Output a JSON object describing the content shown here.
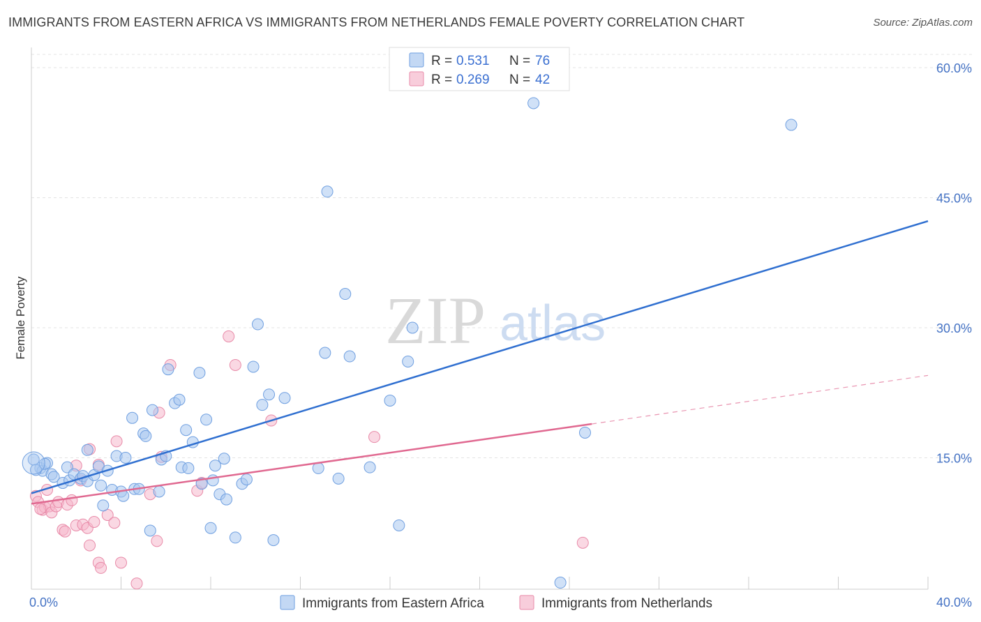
{
  "title": "IMMIGRANTS FROM EASTERN AFRICA VS IMMIGRANTS FROM NETHERLANDS FEMALE POVERTY CORRELATION CHART",
  "source": "Source: ZipAtlas.com",
  "watermark": {
    "zip": "ZIP",
    "atlas": "atlas"
  },
  "colors": {
    "blue_fill": "#a9c8f0",
    "blue_stroke": "#6f9fe0",
    "blue_line": "#2f6fd0",
    "pink_fill": "#f5b8cc",
    "pink_stroke": "#e88aa8",
    "pink_line": "#e06890",
    "grid": "#e3e3e3",
    "tick_text": "#4472c4"
  },
  "legend": {
    "rows": [
      {
        "r_label": "R =",
        "r_value": "0.531",
        "n_label": "N =",
        "n_value": "76"
      },
      {
        "r_label": "R =",
        "r_value": "0.269",
        "n_label": "N =",
        "n_value": "42"
      }
    ]
  },
  "chart_data": {
    "type": "scatter",
    "title": "IMMIGRANTS FROM EASTERN AFRICA VS IMMIGRANTS FROM NETHERLANDS FEMALE POVERTY CORRELATION CHART",
    "xlabel": "",
    "ylabel": "Female Poverty",
    "xlim": [
      0,
      40
    ],
    "ylim": [
      0,
      60
    ],
    "x_tick_labels": [
      "0.0%",
      "40.0%"
    ],
    "y_ticks": [
      15,
      30,
      45,
      60
    ],
    "y_tick_labels": [
      "15.0%",
      "30.0%",
      "45.0%",
      "60.0%"
    ],
    "grid": true,
    "legend_position": "top-center",
    "series": [
      {
        "name": "Immigrants from Eastern Africa",
        "color": "blue",
        "r": 0.531,
        "n": 76,
        "points": [
          [
            0.1,
            14.8
          ],
          [
            0.4,
            13.8
          ],
          [
            0.5,
            13.5
          ],
          [
            0.7,
            14.4
          ],
          [
            0.9,
            13.1
          ],
          [
            1.0,
            12.8
          ],
          [
            1.4,
            12.1
          ],
          [
            1.6,
            13.9
          ],
          [
            1.7,
            12.4
          ],
          [
            1.9,
            13.1
          ],
          [
            2.2,
            12.6
          ],
          [
            2.3,
            12.9
          ],
          [
            2.5,
            12.3
          ],
          [
            2.5,
            15.9
          ],
          [
            2.8,
            13.0
          ],
          [
            3.0,
            14.0
          ],
          [
            3.1,
            11.8
          ],
          [
            3.2,
            9.5
          ],
          [
            3.4,
            13.5
          ],
          [
            3.6,
            11.3
          ],
          [
            3.8,
            15.2
          ],
          [
            4.0,
            11.1
          ],
          [
            4.1,
            10.6
          ],
          [
            4.2,
            15.0
          ],
          [
            4.5,
            19.6
          ],
          [
            4.6,
            11.4
          ],
          [
            4.8,
            11.4
          ],
          [
            5.0,
            17.8
          ],
          [
            5.1,
            17.5
          ],
          [
            5.3,
            6.6
          ],
          [
            5.4,
            20.5
          ],
          [
            5.7,
            11.1
          ],
          [
            5.8,
            14.8
          ],
          [
            6.0,
            15.2
          ],
          [
            6.1,
            25.2
          ],
          [
            6.4,
            21.3
          ],
          [
            6.6,
            21.7
          ],
          [
            6.7,
            13.9
          ],
          [
            6.9,
            18.2
          ],
          [
            7.0,
            13.8
          ],
          [
            7.2,
            16.8
          ],
          [
            7.5,
            24.8
          ],
          [
            7.6,
            12.0
          ],
          [
            7.8,
            19.4
          ],
          [
            8.0,
            6.9
          ],
          [
            8.1,
            12.4
          ],
          [
            8.2,
            14.1
          ],
          [
            8.4,
            10.8
          ],
          [
            8.6,
            14.9
          ],
          [
            8.7,
            10.2
          ],
          [
            9.1,
            5.8
          ],
          [
            9.4,
            12.0
          ],
          [
            9.6,
            12.5
          ],
          [
            9.9,
            25.5
          ],
          [
            10.1,
            30.4
          ],
          [
            10.3,
            21.1
          ],
          [
            10.6,
            22.3
          ],
          [
            10.8,
            5.5
          ],
          [
            11.3,
            21.9
          ],
          [
            12.8,
            13.8
          ],
          [
            13.1,
            27.1
          ],
          [
            13.2,
            45.7
          ],
          [
            13.7,
            12.6
          ],
          [
            14.0,
            33.9
          ],
          [
            14.2,
            26.7
          ],
          [
            15.1,
            13.9
          ],
          [
            16.0,
            21.6
          ],
          [
            16.4,
            7.2
          ],
          [
            16.8,
            26.1
          ],
          [
            17.0,
            30.0
          ],
          [
            22.4,
            55.9
          ],
          [
            23.6,
            0.6
          ],
          [
            24.7,
            17.9
          ],
          [
            33.9,
            53.4
          ],
          [
            0.2,
            13.6
          ],
          [
            0.6,
            14.3
          ]
        ]
      },
      {
        "name": "Immigrants from Netherlands",
        "color": "pink",
        "r": 0.269,
        "n": 42,
        "points": [
          [
            0.2,
            10.6
          ],
          [
            0.3,
            9.9
          ],
          [
            0.5,
            9.0
          ],
          [
            0.6,
            9.3
          ],
          [
            0.7,
            11.3
          ],
          [
            0.8,
            9.4
          ],
          [
            0.9,
            8.7
          ],
          [
            1.1,
            9.4
          ],
          [
            1.2,
            9.9
          ],
          [
            1.4,
            6.7
          ],
          [
            1.5,
            6.5
          ],
          [
            1.6,
            9.6
          ],
          [
            1.8,
            10.1
          ],
          [
            2.0,
            14.1
          ],
          [
            2.0,
            7.2
          ],
          [
            2.2,
            12.4
          ],
          [
            2.3,
            7.3
          ],
          [
            2.5,
            6.9
          ],
          [
            2.6,
            16.0
          ],
          [
            2.6,
            4.9
          ],
          [
            2.8,
            7.6
          ],
          [
            3.0,
            2.9
          ],
          [
            3.0,
            14.2
          ],
          [
            3.1,
            2.3
          ],
          [
            3.4,
            8.4
          ],
          [
            3.7,
            7.5
          ],
          [
            3.8,
            16.9
          ],
          [
            4.0,
            2.9
          ],
          [
            4.7,
            0.5
          ],
          [
            5.3,
            10.8
          ],
          [
            5.6,
            5.4
          ],
          [
            5.7,
            20.2
          ],
          [
            5.8,
            15.1
          ],
          [
            6.2,
            25.7
          ],
          [
            7.4,
            11.2
          ],
          [
            7.6,
            12.1
          ],
          [
            8.8,
            29.0
          ],
          [
            9.1,
            25.7
          ],
          [
            10.7,
            19.3
          ],
          [
            15.3,
            17.4
          ],
          [
            24.6,
            5.2
          ],
          [
            0.4,
            9.1
          ]
        ]
      }
    ],
    "trend_lines": [
      {
        "series": "Immigrants from Eastern Africa",
        "x": [
          0,
          40
        ],
        "y": [
          10.9,
          42.3
        ],
        "style": "solid"
      },
      {
        "series": "Immigrants from Netherlands",
        "x": [
          0,
          25.0
        ],
        "y": [
          9.7,
          18.9
        ],
        "style": "solid"
      },
      {
        "series": "Immigrants from Netherlands",
        "x": [
          25.0,
          40
        ],
        "y": [
          18.9,
          24.5
        ],
        "style": "dashed"
      }
    ]
  },
  "bottom_legend": [
    {
      "label": "Immigrants from Eastern Africa"
    },
    {
      "label": "Immigrants from Netherlands"
    }
  ]
}
